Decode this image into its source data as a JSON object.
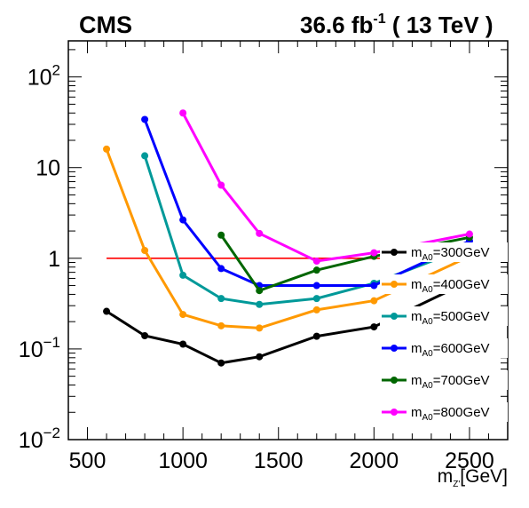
{
  "header": {
    "experiment": "CMS",
    "lumi": "36.6 fb",
    "lumi_exp": "-1",
    "energy": " ( 13 TeV )"
  },
  "chart_data": {
    "type": "line",
    "title": "",
    "xlabel_main": "m",
    "xlabel_sub": "Z'",
    "xlabel_unit": "[GeV]",
    "ylabel": "",
    "xlim": [
      400,
      2700
    ],
    "ylim": [
      0.01,
      250
    ],
    "yscale": "log",
    "grid": false,
    "legend_position": "right",
    "x_ticks": [
      {
        "v": 500,
        "label": "500"
      },
      {
        "v": 1000,
        "label": "1000"
      },
      {
        "v": 1500,
        "label": "1500"
      },
      {
        "v": 2000,
        "label": "2000"
      },
      {
        "v": 2500,
        "label": "2500"
      }
    ],
    "y_ticks": [
      {
        "v": 0.01,
        "base": "10",
        "exp": "−2"
      },
      {
        "v": 0.1,
        "base": "10",
        "exp": "−1"
      },
      {
        "v": 1,
        "base": "1",
        "exp": ""
      },
      {
        "v": 10,
        "base": "10",
        "exp": ""
      },
      {
        "v": 100,
        "base": "10",
        "exp": "2"
      }
    ],
    "reference_line": {
      "y": 1,
      "color": "#ff0000"
    },
    "series": [
      {
        "label_main": "m",
        "label_sub": "A0",
        "label_rest": "=300GeV",
        "color": "#000000",
        "points": [
          [
            600,
            0.26
          ],
          [
            800,
            0.14
          ],
          [
            1000,
            0.113
          ],
          [
            1200,
            0.07
          ],
          [
            1400,
            0.082
          ],
          [
            1700,
            0.138
          ],
          [
            2000,
            0.175
          ],
          [
            2500,
            0.56
          ]
        ]
      },
      {
        "label_main": "m",
        "label_sub": "A0",
        "label_rest": "=400GeV",
        "color": "#ff9900",
        "points": [
          [
            600,
            16
          ],
          [
            800,
            1.22
          ],
          [
            1000,
            0.24
          ],
          [
            1200,
            0.18
          ],
          [
            1400,
            0.17
          ],
          [
            1700,
            0.27
          ],
          [
            2000,
            0.34
          ],
          [
            2500,
            1.05
          ]
        ]
      },
      {
        "label_main": "m",
        "label_sub": "A0",
        "label_rest": "=500GeV",
        "color": "#009999",
        "points": [
          [
            800,
            13.5
          ],
          [
            1000,
            0.65
          ],
          [
            1200,
            0.36
          ],
          [
            1400,
            0.31
          ],
          [
            1700,
            0.36
          ],
          [
            2000,
            0.53
          ],
          [
            2500,
            1.35
          ]
        ]
      },
      {
        "label_main": "m",
        "label_sub": "A0",
        "label_rest": "=600GeV",
        "color": "#0000ff",
        "points": [
          [
            800,
            34
          ],
          [
            1000,
            2.65
          ],
          [
            1200,
            0.77
          ],
          [
            1400,
            0.5
          ],
          [
            1700,
            0.5
          ],
          [
            2000,
            0.5
          ],
          [
            2500,
            1.55
          ]
        ]
      },
      {
        "label_main": "m",
        "label_sub": "A0",
        "label_rest": "=700GeV",
        "color": "#006600",
        "points": [
          [
            1200,
            1.8
          ],
          [
            1400,
            0.44
          ],
          [
            1700,
            0.74
          ],
          [
            2000,
            1.05
          ],
          [
            2500,
            1.7
          ]
        ]
      },
      {
        "label_main": "m",
        "label_sub": "A0",
        "label_rest": "=800GeV",
        "color": "#ff00ff",
        "points": [
          [
            1000,
            40
          ],
          [
            1200,
            6.4
          ],
          [
            1400,
            1.88
          ],
          [
            1700,
            0.93
          ],
          [
            2000,
            1.15
          ],
          [
            2500,
            1.85
          ]
        ]
      }
    ]
  }
}
